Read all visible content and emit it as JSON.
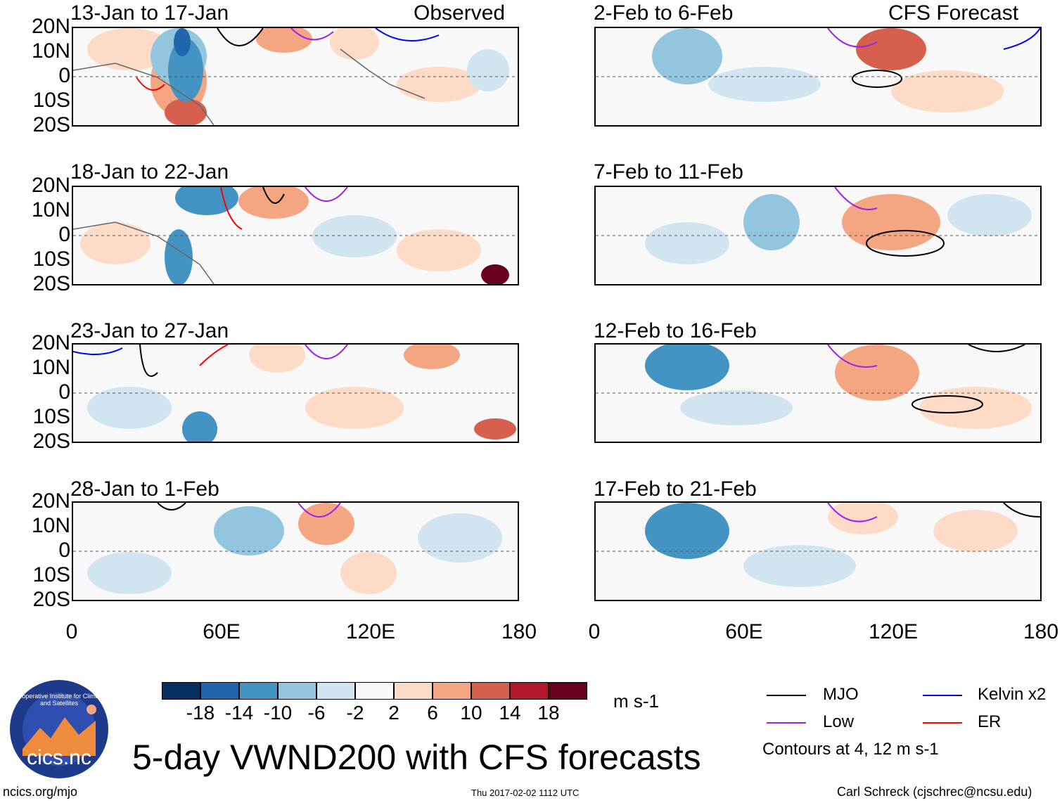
{
  "panels_observed": [
    {
      "title": "13-Jan to 17-Jan",
      "tag": "Observed"
    },
    {
      "title": "18-Jan to 22-Jan",
      "tag": ""
    },
    {
      "title": "23-Jan to 27-Jan",
      "tag": ""
    },
    {
      "title": "28-Jan to 1-Feb",
      "tag": ""
    }
  ],
  "panels_forecast": [
    {
      "title": "2-Feb to 6-Feb",
      "tag": "CFS Forecast"
    },
    {
      "title": "7-Feb to 11-Feb",
      "tag": ""
    },
    {
      "title": "12-Feb to 16-Feb",
      "tag": ""
    },
    {
      "title": "17-Feb to 21-Feb",
      "tag": ""
    }
  ],
  "lat_labels": [
    "20N",
    "10N",
    "0",
    "10S",
    "20S"
  ],
  "lon_labels": [
    "0",
    "60E",
    "120E",
    "180"
  ],
  "colorbar": {
    "labels": [
      "-18",
      "-14",
      "-10",
      "-6",
      "-2",
      "2",
      "6",
      "10",
      "14",
      "18"
    ],
    "colors": [
      "#053061",
      "#2166ac",
      "#4393c3",
      "#92c5de",
      "#d1e5f0",
      "#f7f7f7",
      "#fddbc7",
      "#f4a582",
      "#d6604d",
      "#b2182b",
      "#67001f"
    ],
    "units": "m s-1"
  },
  "legend": {
    "mjo": "MJO",
    "low": "Low",
    "kelvin": "Kelvin x2",
    "er": "ER",
    "note": "Contours at 4, 12 m s-1",
    "colors": {
      "mjo": "#000000",
      "low": "#a020f0",
      "kelvin": "#0000ff",
      "er": "#ff0000"
    }
  },
  "main_title": "5-day VWND200 with CFS forecasts",
  "logo_text": "cics.nc",
  "logo_ring_text": "Cooperative Institute for Climate and Satellites",
  "footer": {
    "left": "ncics.org/mjo",
    "center": "Thu 2017-02-02 1112 UTC",
    "right": "Carl Schreck (cjschrec@ncsu.edu)"
  }
}
